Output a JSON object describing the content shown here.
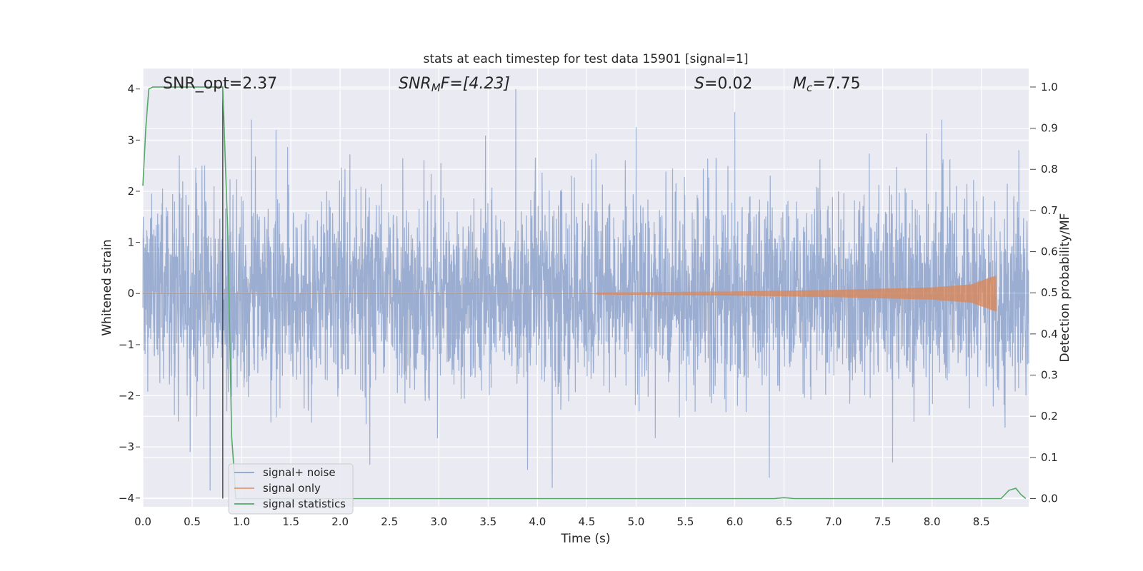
{
  "chart_data": {
    "type": "line",
    "title": "stats at each timestep for test data 15901 [signal=1]",
    "xlabel": "Time (s)",
    "ylabel_left": "Whitened strain",
    "ylabel_right": "Detection probability/MF",
    "xlim": [
      0.0,
      8.98
    ],
    "ylim_left": [
      -4.17,
      4.4
    ],
    "ylim_right": [
      -0.02,
      1.045
    ],
    "xticks": [
      "0.0",
      "0.5",
      "1.0",
      "1.5",
      "2.0",
      "2.5",
      "3.0",
      "3.5",
      "4.0",
      "4.5",
      "5.0",
      "5.5",
      "6.0",
      "6.5",
      "7.0",
      "7.5",
      "8.0",
      "8.5"
    ],
    "xtick_values": [
      0,
      0.5,
      1,
      1.5,
      2,
      2.5,
      3,
      3.5,
      4,
      4.5,
      5,
      5.5,
      6,
      6.5,
      7,
      7.5,
      8,
      8.5
    ],
    "yticks_left": [
      "−4",
      "−3",
      "−2",
      "−1",
      "0",
      "1",
      "2",
      "3",
      "4"
    ],
    "ytick_values_left": [
      -4,
      -3,
      -2,
      -1,
      0,
      1,
      2,
      3,
      4
    ],
    "yticks_right": [
      "0.0",
      "0.1",
      "0.2",
      "0.3",
      "0.4",
      "0.5",
      "0.6",
      "0.7",
      "0.8",
      "0.9",
      "1.0"
    ],
    "ytick_values_right": [
      0,
      0.1,
      0.2,
      0.3,
      0.4,
      0.5,
      0.6,
      0.7,
      0.8,
      0.9,
      1.0
    ],
    "grid": true,
    "legend_position": "bottom-left",
    "annotations": {
      "snr_opt": "SNR_opt=2.37",
      "snr_mf_prefix": "SNR",
      "snr_mf_sub": "M",
      "snr_mf_suffix": "F=[4.23]",
      "s_prefix": "S",
      "s_suffix": "=0.02",
      "mc_prefix": "M",
      "mc_sub": "c",
      "mc_suffix": "=7.75"
    },
    "vertical_marker_x": 0.81,
    "series": [
      {
        "name": "signal+ noise",
        "color": "#4c72b0",
        "axis": "left",
        "description_envelope": {
          "x_range": [
            0.0,
            8.98
          ],
          "typical_band": [
            -1.5,
            1.7
          ],
          "peak_examples": [
            {
              "x": 0.6,
              "y": 2.5
            },
            {
              "x": 1.1,
              "y": 3.4
            },
            {
              "x": 1.35,
              "y": 3.2
            },
            {
              "x": 2.3,
              "y": 3.3
            },
            {
              "x": 3.78,
              "y": 4.0
            },
            {
              "x": 5.0,
              "y": 3.25
            },
            {
              "x": 6.0,
              "y": 3.55
            },
            {
              "x": 8.1,
              "y": 3.4
            },
            {
              "x": 8.88,
              "y": 2.8
            },
            {
              "x": 0.48,
              "y": -3.1
            },
            {
              "x": 0.68,
              "y": -3.85
            },
            {
              "x": 2.3,
              "y": -3.35
            },
            {
              "x": 3.9,
              "y": -3.45
            },
            {
              "x": 4.15,
              "y": -3.8
            },
            {
              "x": 6.35,
              "y": -3.6
            },
            {
              "x": 7.6,
              "y": -3.3
            }
          ]
        }
      },
      {
        "name": "signal only",
        "color": "#dd8452",
        "axis": "left",
        "description_envelope": {
          "x_range": [
            4.6,
            8.65
          ],
          "amplitude_at": [
            {
              "x": 4.6,
              "a": 0.02
            },
            {
              "x": 6.0,
              "a": 0.04
            },
            {
              "x": 7.0,
              "a": 0.07
            },
            {
              "x": 8.0,
              "a": 0.12
            },
            {
              "x": 8.4,
              "a": 0.18
            },
            {
              "x": 8.6,
              "a": 0.32
            },
            {
              "x": 8.65,
              "a": 0.35
            }
          ]
        }
      },
      {
        "name": "signal statistics",
        "color": "#55a868",
        "axis": "right",
        "x": [
          0.0,
          0.03,
          0.06,
          0.1,
          0.2,
          0.4,
          0.6,
          0.8,
          0.81,
          0.86,
          0.9,
          0.93,
          0.94,
          0.98,
          1.0,
          2.0,
          3.0,
          4.0,
          5.0,
          6.0,
          6.4,
          6.5,
          6.6,
          7.0,
          8.0,
          8.7,
          8.78,
          8.85,
          8.9,
          8.95
        ],
        "y": [
          0.76,
          0.9,
          0.995,
          1.0,
          1.0,
          1.0,
          1.0,
          1.0,
          1.0,
          0.65,
          0.15,
          0.05,
          0.0,
          0.0,
          0.0,
          0.0,
          0.0,
          0.0,
          0.0,
          0.0,
          0.0,
          0.002,
          0.0,
          0.0,
          0.0,
          0.0,
          0.02,
          0.025,
          0.01,
          0.0
        ]
      }
    ]
  }
}
